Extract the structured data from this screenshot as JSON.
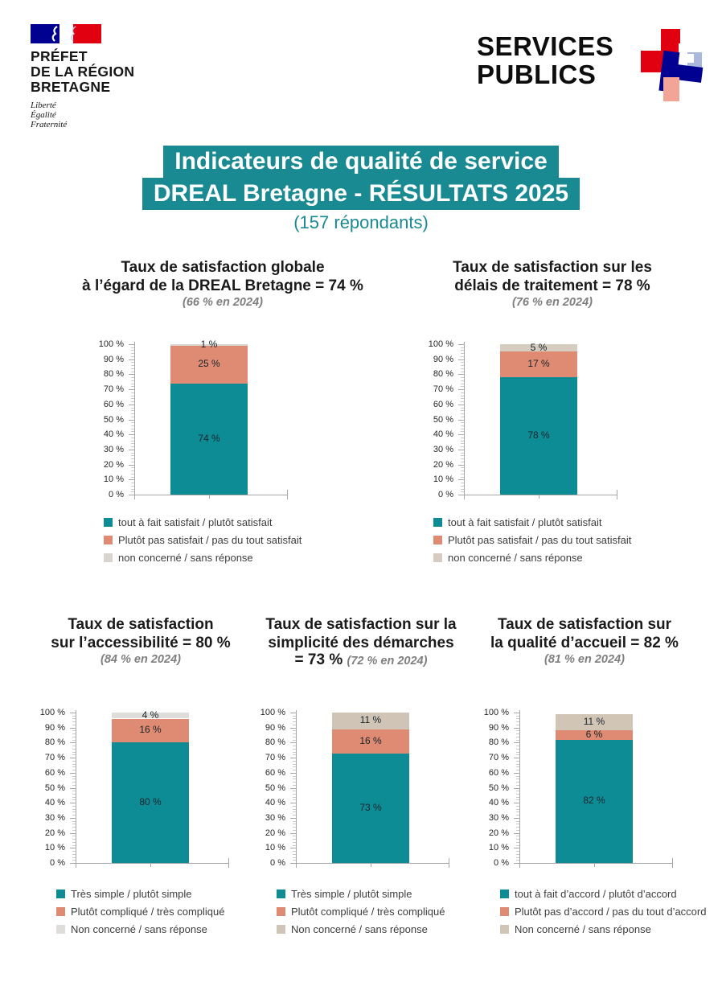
{
  "header": {
    "marianne": {
      "ministry_lines": [
        "PRÉFET",
        "DE LA RÉGION",
        "BRETAGNE"
      ],
      "motto_lines": [
        "Liberté",
        "Égalité",
        "Fraternité"
      ],
      "flag_blue": "#000091",
      "flag_red": "#e1000f"
    },
    "services_publics": {
      "line1": "SERVICES",
      "line2": "PUBLICS",
      "logo_red": "#e1000f",
      "logo_dark_blue": "#000091",
      "logo_light_blue": "#a9b8dc",
      "logo_pink": "#f2a496"
    }
  },
  "title": {
    "line1": "Indicateurs de qualité de service",
    "line2": "DREAL Bretagne - RÉSULTATS 2025",
    "subtitle": "(157 répondants)",
    "highlight_color": "#1a8a92",
    "text_color": "#1a8a92"
  },
  "chart_data": [
    {
      "type": "bar",
      "stacked": true,
      "ylim": [
        0,
        100
      ],
      "ytick_step": 10,
      "grid": false,
      "title_lines": [
        "Taux de satisfaction globale",
        "à l’égard de la DREAL Bretagne = 74 %"
      ],
      "inline_value": "",
      "subtitle": "(66 % en 2024)",
      "segments": [
        {
          "label": "tout à fait satisfait / plutôt satisfait",
          "value": 74,
          "bar_label": "74 %",
          "color": "#0d8c95"
        },
        {
          "label": "Plutôt pas satisfait / pas du tout satisfait",
          "value": 25,
          "bar_label": "25 %",
          "color": "#df8a73"
        },
        {
          "label": "non concerné / sans réponse",
          "value": 1,
          "bar_label": "1 %",
          "color": "#d8d4ce"
        }
      ]
    },
    {
      "type": "bar",
      "stacked": true,
      "ylim": [
        0,
        100
      ],
      "ytick_step": 10,
      "grid": false,
      "title_lines": [
        "Taux de satisfaction sur les",
        "délais de traitement = 78 %"
      ],
      "inline_value": "",
      "subtitle": "(76 % en 2024)",
      "segments": [
        {
          "label": "tout à fait satisfait / plutôt satisfait",
          "value": 78,
          "bar_label": "78 %",
          "color": "#0d8c95"
        },
        {
          "label": "Plutôt pas satisfait / pas du tout satisfait",
          "value": 17,
          "bar_label": "17 %",
          "color": "#df8a73"
        },
        {
          "label": "non concerné / sans réponse",
          "value": 5,
          "bar_label": "5 %",
          "color": "#d6ccc0"
        }
      ]
    },
    {
      "type": "bar",
      "stacked": true,
      "ylim": [
        0,
        100
      ],
      "ytick_step": 10,
      "grid": false,
      "title_lines": [
        "Taux de satisfaction",
        "sur l’accessibilité = 80 %"
      ],
      "inline_value": "",
      "subtitle": "(84 % en 2024)",
      "segments": [
        {
          "label": "Très simple / plutôt simple",
          "value": 80,
          "bar_label": "80 %",
          "color": "#0d8c95"
        },
        {
          "label": "Plutôt compliqué / très compliqué",
          "value": 16,
          "bar_label": "16 %",
          "color": "#df8a73"
        },
        {
          "label": "Non concerné / sans réponse",
          "value": 4,
          "bar_label": "4 %",
          "color": "#deddd9"
        }
      ]
    },
    {
      "type": "bar",
      "stacked": true,
      "ylim": [
        0,
        100
      ],
      "ytick_step": 10,
      "grid": false,
      "title_lines": [
        "Taux de satisfaction sur la",
        "simplicité des démarches"
      ],
      "inline_value": "= 73 %",
      "subtitle": "(72 % en 2024)",
      "segments": [
        {
          "label": "Très simple / plutôt simple",
          "value": 73,
          "bar_label": "73 %",
          "color": "#0d8c95"
        },
        {
          "label": "Plutôt compliqué / très compliqué",
          "value": 16,
          "bar_label": "16 %",
          "color": "#df8a73"
        },
        {
          "label": "Non concerné / sans réponse",
          "value": 11,
          "bar_label": "11 %",
          "color": "#cfc4b5"
        }
      ]
    },
    {
      "type": "bar",
      "stacked": true,
      "ylim": [
        0,
        100
      ],
      "ytick_step": 10,
      "grid": false,
      "title_lines": [
        "Taux de satisfaction sur",
        "la qualité d’accueil = 82 %"
      ],
      "inline_value": "",
      "subtitle": "(81 % en 2024)",
      "segments": [
        {
          "label": "tout à fait d’accord / plutôt d’accord",
          "value": 82,
          "bar_label": "82 %",
          "color": "#0d8c95"
        },
        {
          "label": "Plutôt pas d’accord / pas du tout d’accord",
          "value": 6,
          "bar_label": "6 %",
          "color": "#df8a73"
        },
        {
          "label": "Non concerné / sans réponse",
          "value": 11,
          "bar_label": "11 %",
          "color": "#d1c5b6"
        }
      ]
    }
  ]
}
